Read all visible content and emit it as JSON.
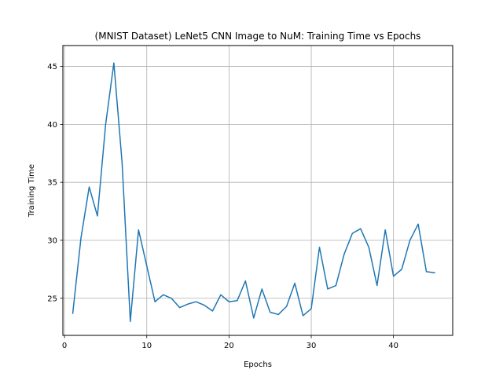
{
  "chart_data": {
    "type": "line",
    "title": "(MNIST Dataset) LeNet5 CNN Image to NuM: Training Time vs Epochs",
    "xlabel": "Epochs",
    "ylabel": "Training Time",
    "xlim": [
      -0.2,
      47.2
    ],
    "ylim": [
      21.8,
      46.8
    ],
    "xticks": [
      0,
      10,
      20,
      30,
      40
    ],
    "yticks": [
      25,
      30,
      35,
      40,
      45
    ],
    "grid": true,
    "series": [
      {
        "color": "#1f77b4",
        "x": [
          1,
          2,
          3,
          4,
          5,
          6,
          7,
          8,
          9,
          10,
          11,
          12,
          13,
          14,
          15,
          16,
          17,
          18,
          19,
          20,
          21,
          22,
          23,
          24,
          25,
          26,
          27,
          28,
          29,
          30,
          31,
          32,
          33,
          34,
          35,
          36,
          37,
          38,
          39,
          40,
          41,
          42,
          43,
          44,
          45
        ],
        "y": [
          23.7,
          30.2,
          34.6,
          32.1,
          40.0,
          45.3,
          36.7,
          23.0,
          30.9,
          27.8,
          24.7,
          25.3,
          25.0,
          24.2,
          24.5,
          24.7,
          24.4,
          23.9,
          25.3,
          24.7,
          24.8,
          26.5,
          23.3,
          25.8,
          23.8,
          23.6,
          24.3,
          26.3,
          23.5,
          24.1,
          29.4,
          25.8,
          26.1,
          28.8,
          30.6,
          31.0,
          29.4,
          26.1,
          30.9,
          26.9,
          27.5,
          30.0,
          31.4,
          27.3,
          27.2
        ]
      }
    ]
  }
}
